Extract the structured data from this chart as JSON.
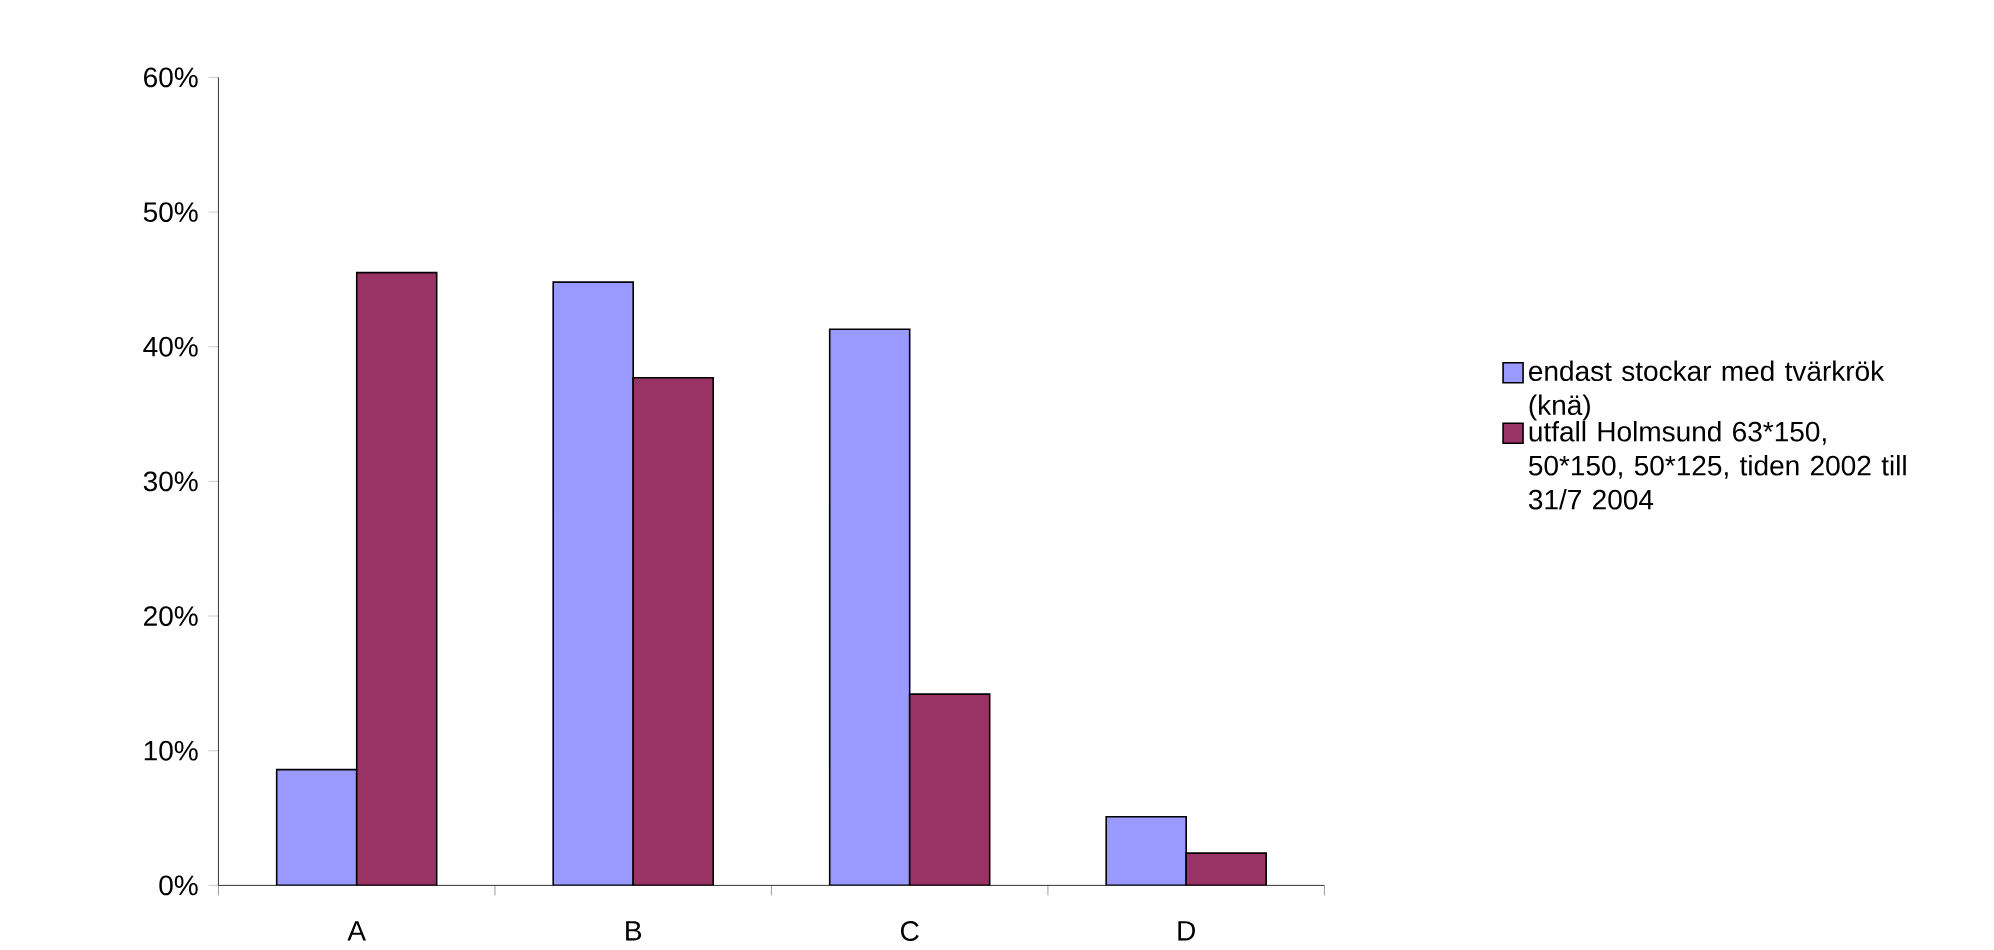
{
  "chart_data": {
    "type": "bar",
    "categories": [
      "A",
      "B",
      "C",
      "D"
    ],
    "series": [
      {
        "name": "endast stockar med tvärkrök (knä)",
        "color": "#9999ff",
        "values": [
          8.6,
          44.8,
          41.3,
          5.1
        ]
      },
      {
        "name": "utfall Holmsund 63*150, 50*150, 50*125, tiden 2002 till 31/7 2004",
        "color": "#993366",
        "values": [
          45.5,
          37.7,
          14.2,
          2.4
        ]
      }
    ],
    "ylim": [
      0,
      60
    ],
    "yticks": [
      {
        "value": 0,
        "label": "0%"
      },
      {
        "value": 10,
        "label": "10%"
      },
      {
        "value": 20,
        "label": "20%"
      },
      {
        "value": 30,
        "label": "30%"
      },
      {
        "value": 40,
        "label": "40%"
      },
      {
        "value": 50,
        "label": "50%"
      },
      {
        "value": 60,
        "label": "60%"
      }
    ],
    "grid": false,
    "legend": "right"
  }
}
